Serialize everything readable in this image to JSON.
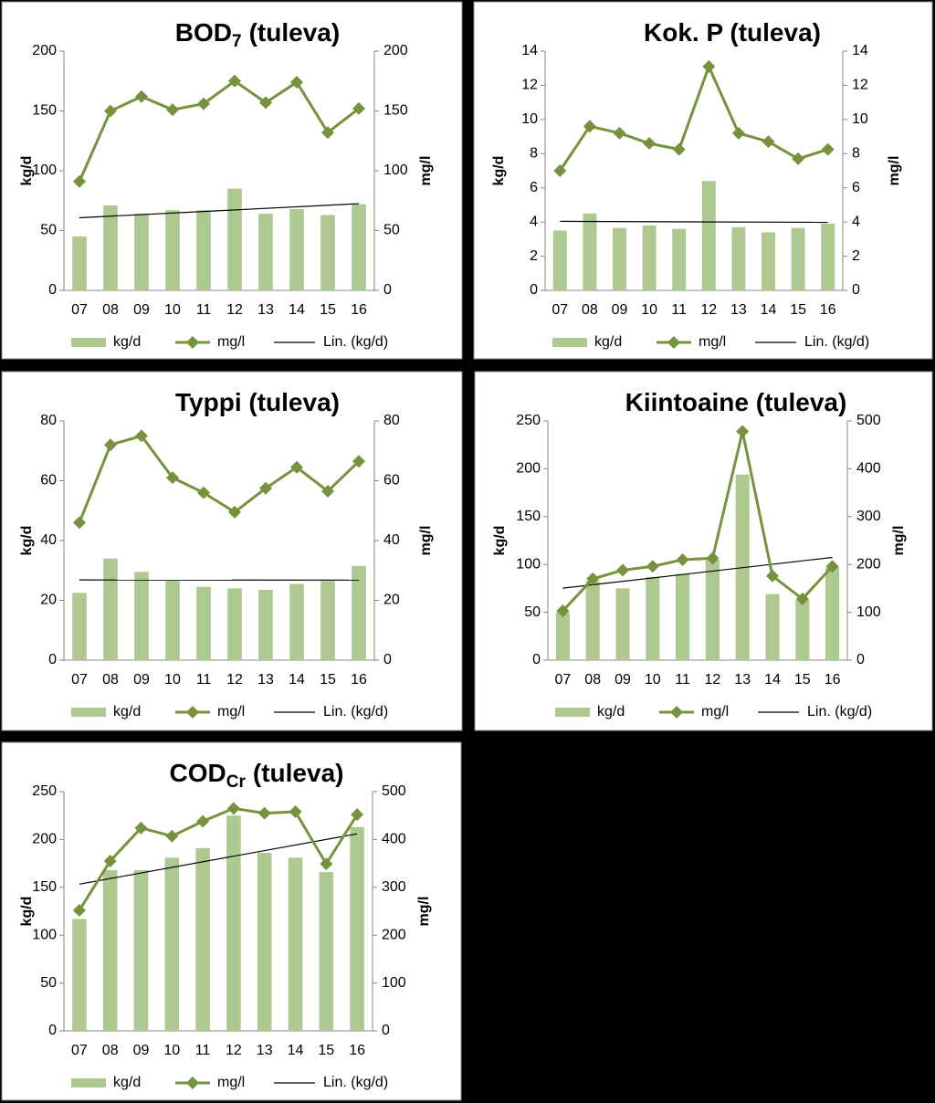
{
  "chart_data": [
    {
      "type": "bar-line",
      "title": "BOD",
      "title_sub": "7",
      "title_suffix": "(tuleva)",
      "y_label": "kg/d",
      "y2_label": "mg/l",
      "categories": [
        "07",
        "08",
        "09",
        "10",
        "11",
        "12",
        "13",
        "14",
        "15",
        "16"
      ],
      "series": [
        {
          "name": "kg/d",
          "color": "#adc98f",
          "values": [
            45,
            71,
            64,
            67,
            67,
            85,
            64,
            68,
            63,
            72
          ]
        },
        {
          "name": "mg/l",
          "color": "#76923c",
          "axis": "y2",
          "values": [
            91,
            150,
            162,
            151,
            156,
            175,
            157,
            174,
            132,
            152
          ]
        },
        {
          "name": "Lin. (kg/d)",
          "color": "#000000",
          "kind": "linear-trend"
        }
      ],
      "ylim": [
        0,
        200
      ],
      "yticks": [
        0,
        50,
        100,
        150,
        200
      ],
      "y2lim": [
        0,
        200
      ],
      "y2ticks": [
        0,
        50,
        100,
        150,
        200
      ],
      "grid": false,
      "legend": "bottom"
    },
    {
      "type": "bar-line",
      "title": "Kok. P (tuleva)",
      "y_label": "kg/d",
      "y2_label": "mg/l",
      "categories": [
        "07",
        "08",
        "09",
        "10",
        "11",
        "12",
        "13",
        "14",
        "15",
        "16"
      ],
      "series": [
        {
          "name": "kg/d",
          "color": "#adc98f",
          "values": [
            3.5,
            4.5,
            3.65,
            3.8,
            3.6,
            6.4,
            3.7,
            3.4,
            3.65,
            3.9
          ]
        },
        {
          "name": "mg/l",
          "color": "#76923c",
          "axis": "y2",
          "values": [
            7.0,
            9.6,
            9.2,
            8.6,
            8.25,
            13.1,
            9.2,
            8.7,
            7.7,
            8.25
          ]
        },
        {
          "name": "Lin. (kg/d)",
          "color": "#000000",
          "kind": "linear-trend"
        }
      ],
      "ylim": [
        0,
        14
      ],
      "yticks": [
        0,
        2,
        4,
        6,
        8,
        10,
        12,
        14
      ],
      "y2lim": [
        0,
        14
      ],
      "y2ticks": [
        0,
        2,
        4,
        6,
        8,
        10,
        12,
        14
      ],
      "grid": false,
      "legend": "bottom"
    },
    {
      "type": "bar-line",
      "title": "Typpi (tuleva)",
      "y_label": "kg/d",
      "y2_label": "mg/l",
      "categories": [
        "07",
        "08",
        "09",
        "10",
        "11",
        "12",
        "13",
        "14",
        "15",
        "16"
      ],
      "series": [
        {
          "name": "kg/d",
          "color": "#adc98f",
          "values": [
            22.5,
            34,
            29.5,
            26.5,
            24.5,
            24,
            23.5,
            25.5,
            26.5,
            31.5
          ]
        },
        {
          "name": "mg/l",
          "color": "#76923c",
          "axis": "y2",
          "values": [
            46,
            72,
            75,
            61,
            56,
            49.5,
            57.5,
            64.5,
            56.5,
            66.5
          ]
        },
        {
          "name": "Lin. (kg/d)",
          "color": "#000000",
          "kind": "linear-trend"
        }
      ],
      "ylim": [
        0,
        80
      ],
      "yticks": [
        0,
        20,
        40,
        60,
        80
      ],
      "y2lim": [
        0,
        80
      ],
      "y2ticks": [
        0,
        20,
        40,
        60,
        80
      ],
      "grid": false,
      "legend": "bottom"
    },
    {
      "type": "bar-line",
      "title": "Kiintoaine (tuleva)",
      "y_label": "kg/d",
      "y2_label": "mg/l",
      "categories": [
        "07",
        "08",
        "09",
        "10",
        "11",
        "12",
        "13",
        "14",
        "15",
        "16"
      ],
      "series": [
        {
          "name": "kg/d",
          "color": "#adc98f",
          "values": [
            50,
            83,
            75,
            87,
            90,
            105,
            194,
            69,
            63,
            97
          ]
        },
        {
          "name": "mg/l",
          "color": "#76923c",
          "axis": "y2",
          "values": [
            103,
            170,
            188,
            196,
            210,
            213,
            478,
            176,
            128,
            196
          ]
        },
        {
          "name": "Lin. (kg/d)",
          "color": "#000000",
          "kind": "linear-trend"
        }
      ],
      "ylim": [
        0,
        250
      ],
      "yticks": [
        0,
        50,
        100,
        150,
        200,
        250
      ],
      "y2lim": [
        0,
        500
      ],
      "y2ticks": [
        0,
        100,
        200,
        300,
        400,
        500
      ],
      "grid": false,
      "legend": "bottom"
    },
    {
      "type": "bar-line",
      "title": "COD",
      "title_sub": "Cr",
      "title_suffix": "(tuleva)",
      "y_label": "kg/d",
      "y2_label": "mg/l",
      "categories": [
        "07",
        "08",
        "09",
        "10",
        "11",
        "12",
        "13",
        "14",
        "15",
        "16"
      ],
      "series": [
        {
          "name": "kg/d",
          "color": "#adc98f",
          "values": [
            117,
            168,
            168,
            181,
            191,
            225,
            186,
            181,
            166,
            213
          ]
        },
        {
          "name": "mg/l",
          "color": "#76923c",
          "axis": "y2",
          "values": [
            252,
            355,
            424,
            407,
            438,
            465,
            455,
            458,
            349,
            452
          ]
        },
        {
          "name": "Lin. (kg/d)",
          "color": "#000000",
          "kind": "linear-trend"
        }
      ],
      "ylim": [
        0,
        250
      ],
      "yticks": [
        0,
        50,
        100,
        150,
        200,
        250
      ],
      "y2lim": [
        0,
        500
      ],
      "y2ticks": [
        0,
        100,
        200,
        300,
        400,
        500
      ],
      "grid": false,
      "legend": "bottom"
    }
  ]
}
